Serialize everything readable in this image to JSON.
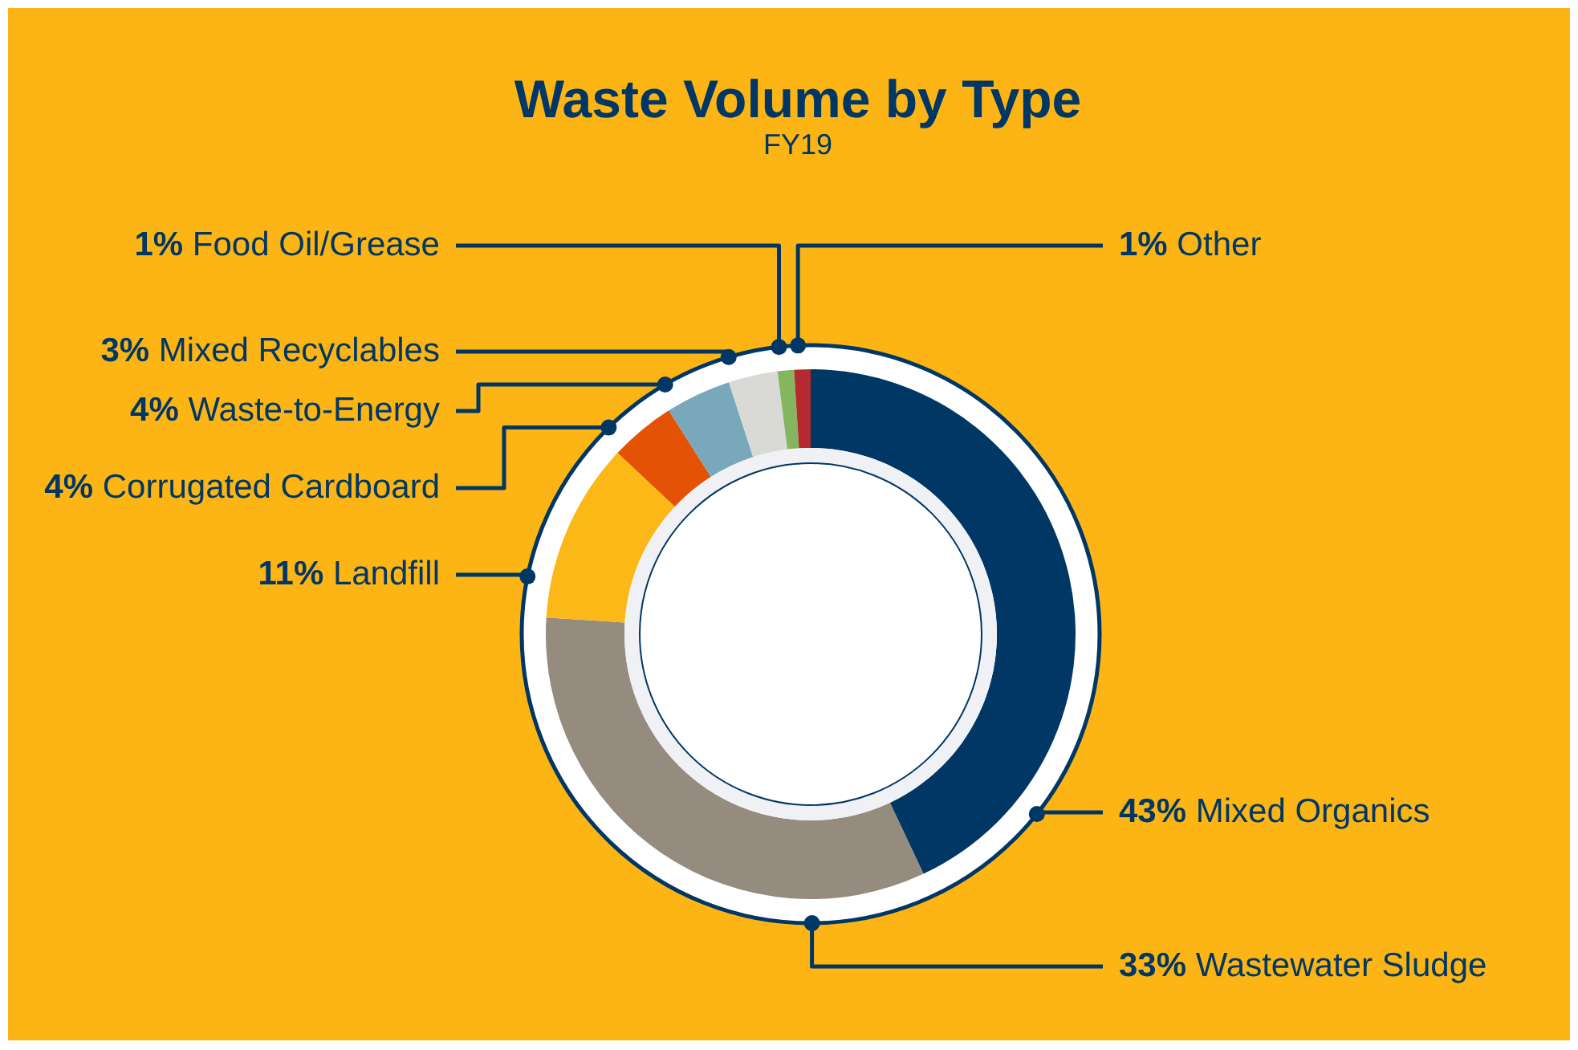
{
  "chart_data": {
    "type": "donut",
    "title": "Waste Volume by Type",
    "subtitle": "FY19",
    "categories": [
      "Mixed Organics",
      "Wastewater Sludge",
      "Landfill",
      "Corrugated Cardboard",
      "Waste-to-Energy",
      "Mixed Recyclables",
      "Food Oil/Grease",
      "Other"
    ],
    "values": [
      43,
      33,
      11,
      4,
      4,
      3,
      1,
      1
    ],
    "colors": [
      "#003764",
      "#958b7e",
      "#fbb817",
      "#e35205",
      "#79a8bb",
      "#d9d9d6",
      "#86b560",
      "#b42a30"
    ],
    "value_labels": [
      "43%",
      "33%",
      "11%",
      "4%",
      "4%",
      "3%",
      "1%",
      "1%"
    ],
    "legend": false
  }
}
